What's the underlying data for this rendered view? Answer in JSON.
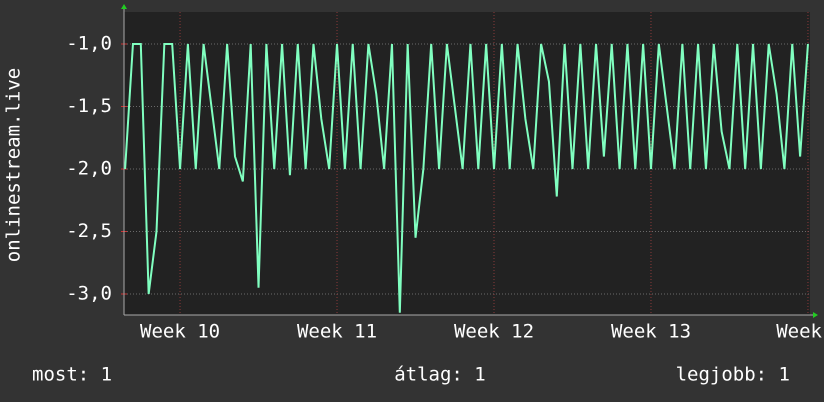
{
  "chart_data": {
    "type": "line",
    "ylabel": "onlinestream.live",
    "x": [
      9.65,
      9.7,
      9.75,
      9.8,
      9.85,
      9.9,
      9.95,
      10.0,
      10.05,
      10.1,
      10.15,
      10.2,
      10.25,
      10.3,
      10.35,
      10.4,
      10.45,
      10.5,
      10.55,
      10.6,
      10.65,
      10.7,
      10.75,
      10.8,
      10.85,
      10.9,
      10.95,
      11.0,
      11.05,
      11.1,
      11.15,
      11.2,
      11.25,
      11.3,
      11.35,
      11.4,
      11.45,
      11.5,
      11.55,
      11.6,
      11.65,
      11.7,
      11.75,
      11.8,
      11.85,
      11.9,
      11.95,
      12.0,
      12.05,
      12.1,
      12.15,
      12.2,
      12.25,
      12.3,
      12.35,
      12.4,
      12.45,
      12.5,
      12.55,
      12.6,
      12.65,
      12.7,
      12.75,
      12.8,
      12.85,
      12.9,
      12.95,
      13.0,
      13.05,
      13.1,
      13.15,
      13.2,
      13.25,
      13.3,
      13.35,
      13.4,
      13.45,
      13.5,
      13.55,
      13.6,
      13.65,
      13.7,
      13.75,
      13.8,
      13.85,
      13.9,
      13.95,
      14.0
    ],
    "series": [
      {
        "color": "#80ffc0",
        "values": [
          -2,
          -1,
          -1,
          -3.0,
          -2.5,
          -1,
          -1,
          -2,
          -1,
          -2,
          -1,
          -1.5,
          -2,
          -1,
          -1.9,
          -2.1,
          -1,
          -2.95,
          -1,
          -2,
          -1,
          -2.05,
          -1,
          -2,
          -1,
          -1.6,
          -2,
          -1,
          -2,
          -1,
          -2,
          -1,
          -1.4,
          -2,
          -1,
          -3.15,
          -1,
          -2.55,
          -2,
          -1,
          -2,
          -1,
          -1.5,
          -2,
          -1,
          -2,
          -1,
          -2,
          -1,
          -2,
          -1,
          -1.6,
          -2,
          -1,
          -1.3,
          -2.22,
          -1,
          -2,
          -1,
          -2,
          -1,
          -1.9,
          -1,
          -2,
          -1,
          -2,
          -1,
          -2,
          -1,
          -1.5,
          -2,
          -1,
          -2,
          -1,
          -2,
          -1,
          -1.7,
          -2,
          -1,
          -2,
          -1,
          -2,
          -1,
          -1.4,
          -2,
          -1,
          -1.9,
          -1
        ]
      }
    ],
    "xlim": [
      9.643,
      14.013
    ],
    "xticks": [
      {
        "value": 10,
        "label": "Week 10"
      },
      {
        "value": 11,
        "label": "Week 11"
      },
      {
        "value": 12,
        "label": "Week 12"
      },
      {
        "value": 13,
        "label": "Week 13"
      },
      {
        "value": 14,
        "label": "Week"
      }
    ],
    "ylim": [
      -3.168,
      -0.744
    ],
    "yticks": [
      {
        "value": -1,
        "label": "-1,0"
      },
      {
        "value": -1.5,
        "label": "-1,5"
      },
      {
        "value": -2,
        "label": "-2,0"
      },
      {
        "value": -2.5,
        "label": "-2,5"
      },
      {
        "value": -3,
        "label": "-3,0"
      }
    ],
    "grid": true,
    "stats": [
      "most: 1",
      "átlag: 1",
      "legjobb: 1"
    ]
  }
}
